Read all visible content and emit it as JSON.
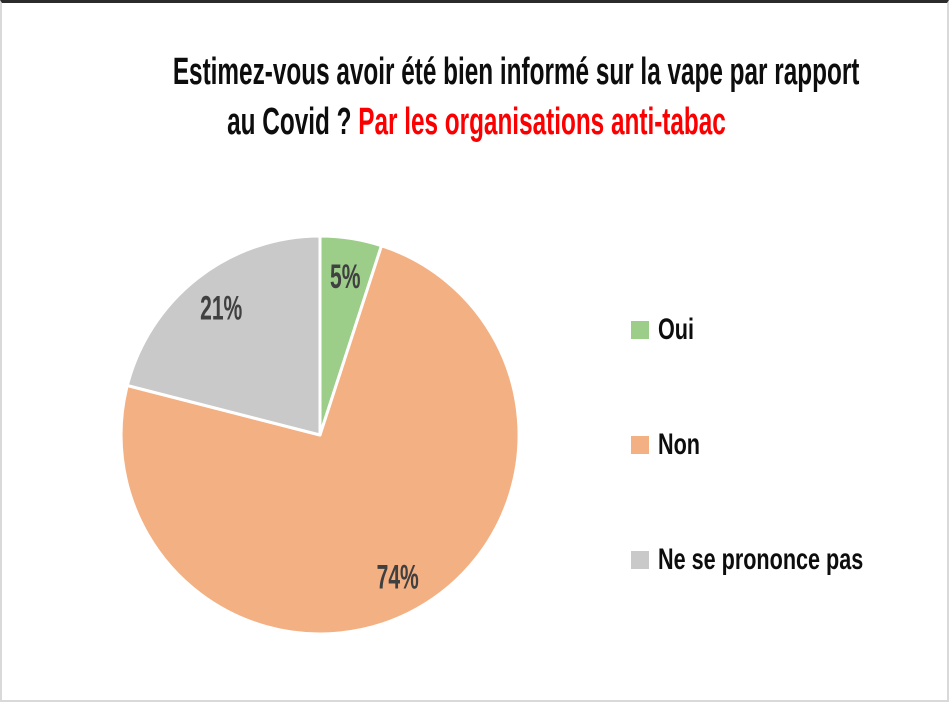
{
  "title": {
    "line1": "Estimez-vous avoir été bien informé sur la vape par rapport",
    "line2_black": "au Covid ? ",
    "line2_red": "Par les organisations anti-tabac",
    "black_color": "#0d0d0d",
    "red_color": "#fb0000"
  },
  "chart_data": {
    "type": "pie",
    "categories": [
      "Oui",
      "Non",
      "Ne se prononce pas"
    ],
    "values": [
      5,
      74,
      21
    ],
    "data_labels": [
      "5%",
      "74%",
      "21%"
    ],
    "unit": "%",
    "colors": [
      "#9cce8a",
      "#f3b083",
      "#c9c9c9"
    ],
    "slice_border_color": "#ffffff",
    "label_color": "#404040",
    "start_angle_deg": -90,
    "direction": "clockwise",
    "legend_position": "right",
    "title": "Estimez-vous avoir été bien informé sur la vape par rapport au Covid ? Par les organisations anti-tabac"
  },
  "legend": {
    "items": [
      {
        "label": "Oui",
        "color": "#9cce8a"
      },
      {
        "label": "Non",
        "color": "#f3b083"
      },
      {
        "label": "Ne se prononce pas",
        "color": "#c9c9c9"
      }
    ],
    "text_color": "#0d0d0d"
  }
}
